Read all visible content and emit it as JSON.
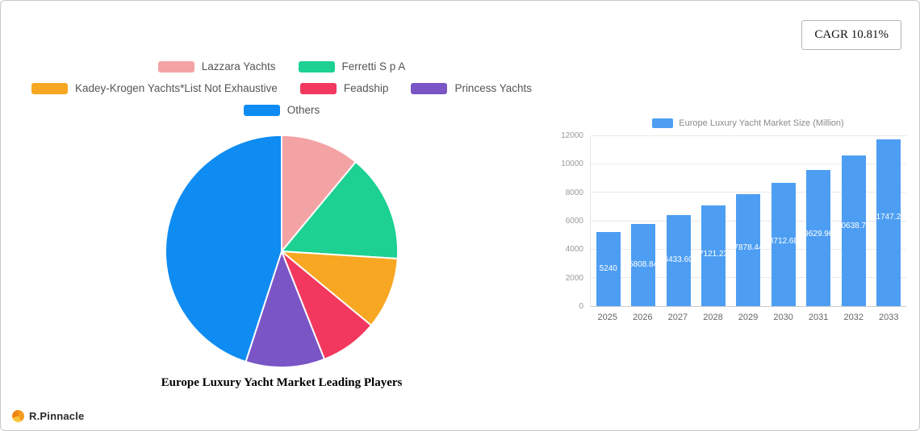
{
  "cagr_label": "CAGR 10.81%",
  "logo": {
    "text": "R.Pinnacle",
    "colors": [
      "#f59b1e",
      "#fbc33b",
      "#ef8313"
    ]
  },
  "chart_data": [
    {
      "type": "pie",
      "title": "Europe Luxury Yacht Market Leading Players",
      "legend_position": "top",
      "slices": [
        {
          "label": "Lazzara Yachts",
          "value": 11,
          "color": "#f4a3a5"
        },
        {
          "label": "Ferretti S p A",
          "value": 15,
          "color": "#1cd192"
        },
        {
          "label": "Kadey-Krogen Yachts*List Not Exhaustive",
          "value": 10,
          "color": "#f7a722"
        },
        {
          "label": "Feadship",
          "value": 8,
          "color": "#f2385e"
        },
        {
          "label": "Princess Yachts",
          "value": 11,
          "color": "#7a55c6"
        },
        {
          "label": "Others",
          "value": 45,
          "color": "#0e8cf2"
        }
      ]
    },
    {
      "type": "bar",
      "series_name": "Europe Luxury Yacht Market Size (Million)",
      "bar_color": "#4d9ef2",
      "categories": [
        "2025",
        "2026",
        "2027",
        "2028",
        "2029",
        "2030",
        "2031",
        "2032",
        "2033"
      ],
      "values": [
        5240,
        5808.84,
        6433.6,
        7121.23,
        7878.44,
        8712.68,
        9629.96,
        10638.75,
        11747.25
      ],
      "labels": [
        "5240",
        "5808.84",
        "6433.60",
        "7121.23",
        "7878.44",
        "8712.68",
        "9629.96",
        "10638.75",
        "11747.25"
      ],
      "ylim": [
        0,
        12000
      ],
      "yticks": [
        0,
        2000,
        4000,
        6000,
        8000,
        10000,
        12000
      ],
      "grid": true,
      "legend_position": "top"
    }
  ]
}
